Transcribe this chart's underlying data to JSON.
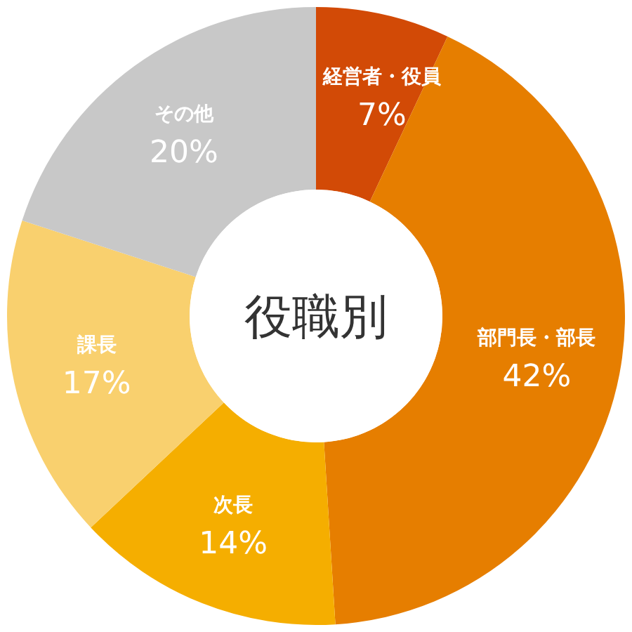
{
  "chart_data": {
    "type": "donut",
    "title": "役職別",
    "categories": [
      "経営者・役員",
      "部門長・部長",
      "次長",
      "課長",
      "その他"
    ],
    "values": [
      7,
      42,
      14,
      17,
      20
    ],
    "value_labels": [
      "7%",
      "42%",
      "14%",
      "17%",
      "20%"
    ],
    "colors": [
      "#d24a06",
      "#e67e00",
      "#f5ae00",
      "#f9d06e",
      "#c8c8c8"
    ]
  }
}
